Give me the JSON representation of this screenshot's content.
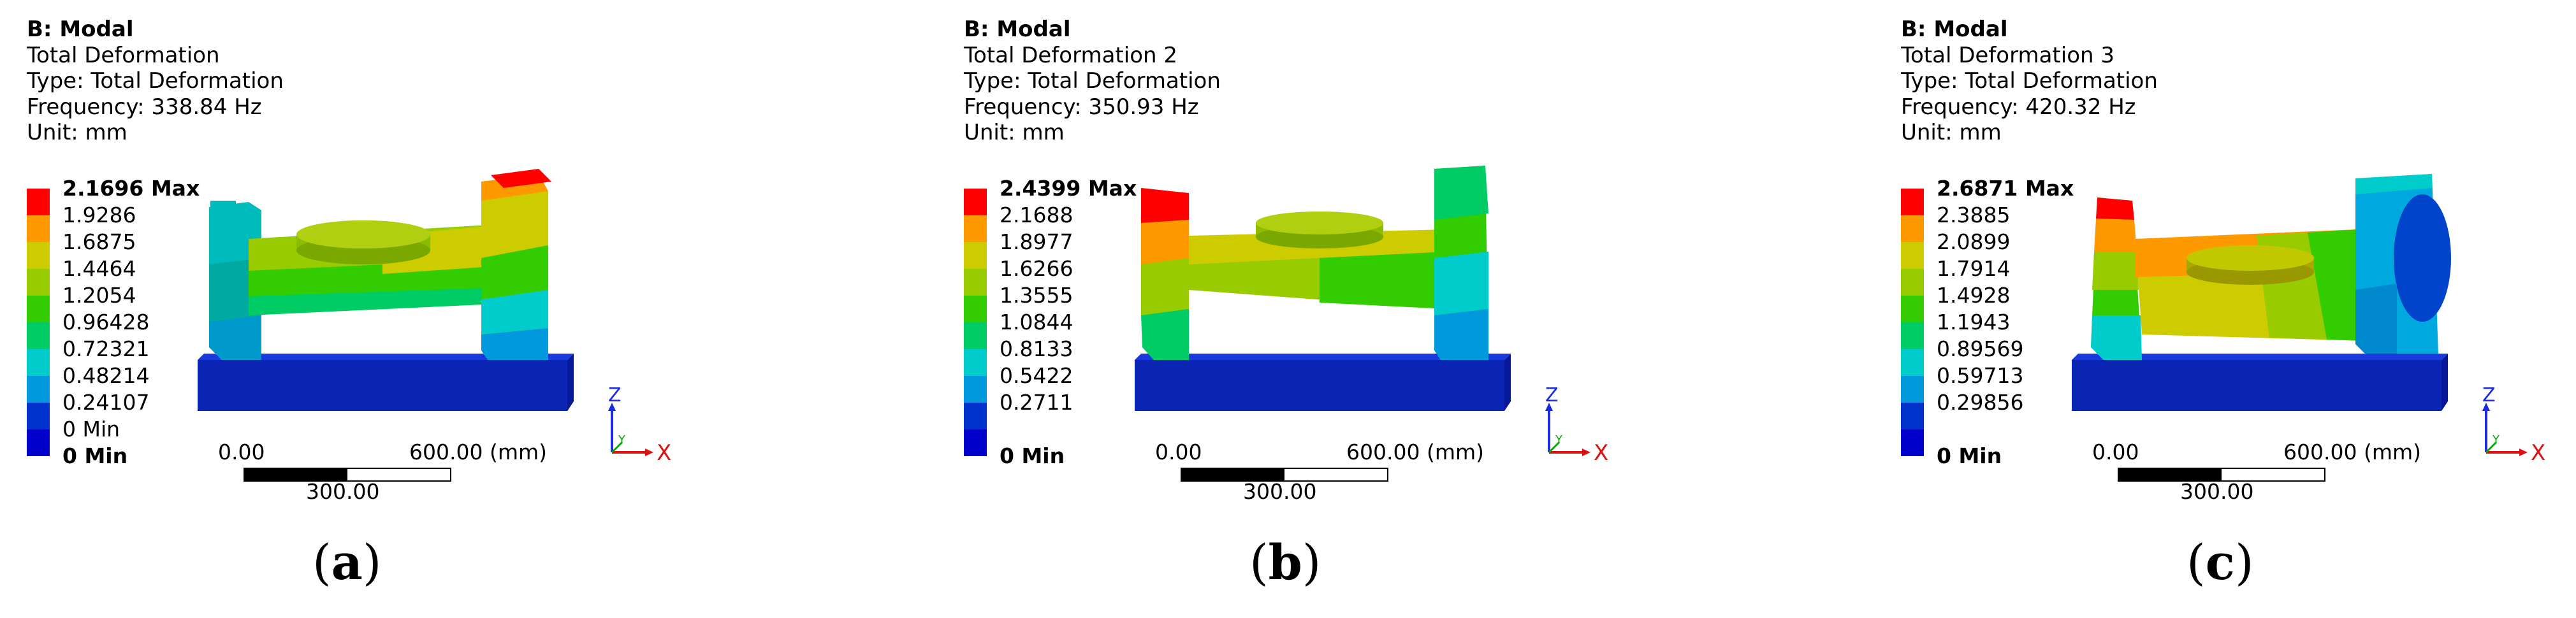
{
  "panels": [
    {
      "id": "a",
      "header": {
        "title": "B: Modal",
        "result": "Total Deformation",
        "type": "Type: Total Deformation",
        "frequency": "Frequency: 338.84 Hz",
        "unit": "Unit: mm"
      },
      "legend": [
        "2.1696 Max",
        "1.9286",
        "1.6875",
        "1.4464",
        "1.2054",
        "0.96428",
        "0.72321",
        "0.48214",
        "0.24107",
        "0 Min"
      ],
      "scale": {
        "left": "0.00",
        "right": "600.00 (mm)",
        "mid": "300.00"
      },
      "triad": {
        "z": "Z",
        "y": "Y",
        "x": "X"
      },
      "caption": {
        "open": "(",
        "letter": "a",
        "close": ")"
      }
    },
    {
      "id": "b",
      "header": {
        "title": "B: Modal",
        "result": "Total Deformation 2",
        "type": "Type: Total Deformation",
        "frequency": "Frequency: 350.93 Hz",
        "unit": "Unit: mm"
      },
      "legend": [
        "2.4399 Max",
        "2.1688",
        "1.8977",
        "1.6266",
        "1.3555",
        "1.0844",
        "0.8133",
        "0.5422",
        "0.2711",
        "0 Min"
      ],
      "scale": {
        "left": "0.00",
        "right": "600.00 (mm)",
        "mid": "300.00"
      },
      "triad": {
        "z": "Z",
        "y": "Y",
        "x": "X"
      },
      "caption": {
        "open": "(",
        "letter": "b",
        "close": ")"
      }
    },
    {
      "id": "c",
      "header": {
        "title": "B: Modal",
        "result": "Total Deformation 3",
        "type": "Type: Total Deformation",
        "frequency": "Frequency: 420.32 Hz",
        "unit": "Unit: mm"
      },
      "legend": [
        "2.6871 Max",
        "2.3885",
        "2.0899",
        "1.7914",
        "1.4928",
        "1.1943",
        "0.89569",
        "0.59713",
        "0.29856",
        "0 Min"
      ],
      "scale": {
        "left": "0.00",
        "right": "600.00 (mm)",
        "mid": "300.00"
      },
      "triad": {
        "z": "Z",
        "y": "Y",
        "x": "X"
      },
      "caption": {
        "open": "(",
        "letter": "c",
        "close": ")"
      }
    }
  ],
  "contour_colors": [
    "#ff0000",
    "#ff9900",
    "#cccc00",
    "#99cc00",
    "#33cc00",
    "#00cc66",
    "#00cccc",
    "#0099dd",
    "#0033cc",
    "#0000cc"
  ],
  "base_color": "#0a24b4"
}
